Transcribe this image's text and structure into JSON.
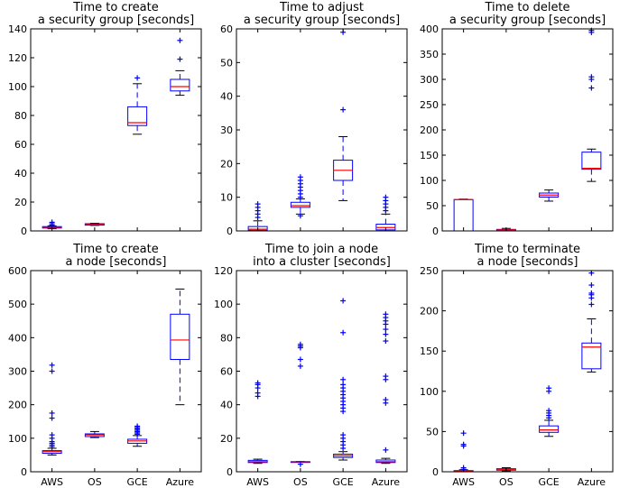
{
  "chart_data": [
    {
      "type": "box",
      "title": [
        "Time to create",
        "a security group [seconds]"
      ],
      "categories": [
        "AWS",
        "OS",
        "GCE",
        "Azure"
      ],
      "ylim": [
        0,
        140
      ],
      "yticks": [
        0,
        20,
        40,
        60,
        80,
        100,
        120,
        140
      ],
      "show_xticklabels": false,
      "boxes": [
        {
          "whislo": 1.5,
          "q1": 2,
          "med": 2.5,
          "q3": 3,
          "whishi": 3.5,
          "fliers": [
            4,
            5,
            6
          ]
        },
        {
          "whislo": 3.8,
          "q1": 4,
          "med": 4.5,
          "q3": 5,
          "whishi": 5.3,
          "fliers": []
        },
        {
          "whislo": 67,
          "q1": 73,
          "med": 75,
          "q3": 86,
          "whishi": 102,
          "fliers": [
            106
          ]
        },
        {
          "whislo": 94,
          "q1": 97,
          "med": 100,
          "q3": 105,
          "whishi": 111,
          "fliers": [
            119,
            132
          ]
        }
      ]
    },
    {
      "type": "box",
      "title": [
        "Time to adjust",
        "a security group [seconds]"
      ],
      "categories": [
        "AWS",
        "OS",
        "GCE",
        "Azure"
      ],
      "ylim": [
        0,
        60
      ],
      "yticks": [
        0,
        10,
        20,
        30,
        40,
        50,
        60
      ],
      "show_xticklabels": false,
      "boxes": [
        {
          "whislo": 0,
          "q1": 0.2,
          "med": 0.5,
          "q3": 1.3,
          "whishi": 3,
          "fliers": [
            4,
            5,
            6,
            7,
            8
          ]
        },
        {
          "whislo": 5,
          "q1": 7,
          "med": 7.5,
          "q3": 8.5,
          "whishi": 9.5,
          "fliers": [
            4.5,
            10,
            11,
            12,
            13,
            14,
            15,
            16
          ]
        },
        {
          "whislo": 9,
          "q1": 15,
          "med": 18,
          "q3": 21,
          "whishi": 28,
          "fliers": [
            36,
            59
          ]
        },
        {
          "whislo": 0,
          "q1": 0.3,
          "med": 1,
          "q3": 2,
          "whishi": 5,
          "fliers": [
            6,
            7,
            8,
            9,
            10
          ]
        }
      ]
    },
    {
      "type": "box",
      "title": [
        "Time to delete",
        "a security group [seconds]"
      ],
      "categories": [
        "AWS",
        "OS",
        "GCE",
        "Azure"
      ],
      "ylim": [
        0,
        400
      ],
      "yticks": [
        0,
        50,
        100,
        150,
        200,
        250,
        300,
        350,
        400
      ],
      "show_xticklabels": false,
      "boxes": [
        {
          "whislo": 0,
          "q1": 0,
          "med": 62,
          "q3": 62,
          "whishi": 63,
          "fliers": []
        },
        {
          "whislo": 0,
          "q1": 1,
          "med": 2,
          "q3": 3,
          "whishi": 5,
          "fliers": []
        },
        {
          "whislo": 59,
          "q1": 67,
          "med": 71,
          "q3": 75,
          "whishi": 81,
          "fliers": []
        },
        {
          "whislo": 98,
          "q1": 122,
          "med": 124,
          "q3": 156,
          "whishi": 162,
          "fliers": [
            283,
            300,
            305,
            393,
            397
          ]
        }
      ]
    },
    {
      "type": "box",
      "title": [
        "Time to create",
        "a node [seconds]"
      ],
      "categories": [
        "AWS",
        "OS",
        "GCE",
        "Azure"
      ],
      "ylim": [
        0,
        600
      ],
      "yticks": [
        0,
        100,
        200,
        300,
        400,
        500,
        600
      ],
      "show_xticklabels": true,
      "boxes": [
        {
          "whislo": 50,
          "q1": 55,
          "med": 60,
          "q3": 63,
          "whishi": 70,
          "fliers": [
            75,
            80,
            85,
            90,
            100,
            110,
            160,
            175,
            300,
            318
          ]
        },
        {
          "whislo": 102,
          "q1": 105,
          "med": 110,
          "q3": 113,
          "whishi": 120,
          "fliers": []
        },
        {
          "whislo": 76,
          "q1": 85,
          "med": 92,
          "q3": 97,
          "whishi": 108,
          "fliers": [
            112,
            116,
            120,
            124,
            128,
            132,
            136
          ]
        },
        {
          "whislo": 200,
          "q1": 335,
          "med": 393,
          "q3": 470,
          "whishi": 545,
          "fliers": []
        }
      ]
    },
    {
      "type": "box",
      "title": [
        "Time to join a node",
        "into a cluster [seconds]"
      ],
      "categories": [
        "AWS",
        "OS",
        "GCE",
        "Azure"
      ],
      "ylim": [
        0,
        120
      ],
      "yticks": [
        0,
        20,
        40,
        60,
        80,
        100,
        120
      ],
      "show_xticklabels": true,
      "boxes": [
        {
          "whislo": 5,
          "q1": 5.5,
          "med": 6,
          "q3": 6.8,
          "whishi": 7.5,
          "fliers": [
            45,
            47,
            50,
            52,
            53
          ]
        },
        {
          "whislo": 5.8,
          "q1": 6,
          "med": 6,
          "q3": 6,
          "whishi": 6.2,
          "fliers": [
            4.5,
            63,
            67,
            74,
            75,
            76
          ]
        },
        {
          "whislo": 7,
          "q1": 8.5,
          "med": 9.5,
          "q3": 10.5,
          "whishi": 12,
          "fliers": [
            14,
            16,
            18,
            20,
            22,
            36,
            38,
            40,
            42,
            44,
            46,
            48,
            50,
            52,
            55,
            83,
            102
          ]
        },
        {
          "whislo": 5,
          "q1": 5.5,
          "med": 6,
          "q3": 7,
          "whishi": 8,
          "fliers": [
            13,
            41,
            43,
            55,
            57,
            78,
            82,
            85,
            88,
            90,
            92,
            94
          ]
        }
      ]
    },
    {
      "type": "box",
      "title": [
        "Time to terminate",
        "a node [seconds]"
      ],
      "categories": [
        "AWS",
        "OS",
        "GCE",
        "Azure"
      ],
      "ylim": [
        0,
        250
      ],
      "yticks": [
        0,
        50,
        100,
        150,
        200,
        250
      ],
      "show_xticklabels": true,
      "boxes": [
        {
          "whislo": 0,
          "q1": 0.5,
          "med": 1,
          "q3": 1.5,
          "whishi": 2.5,
          "fliers": [
            3,
            5,
            32,
            34,
            48
          ]
        },
        {
          "whislo": 1,
          "q1": 2,
          "med": 3,
          "q3": 3.8,
          "whishi": 5,
          "fliers": []
        },
        {
          "whislo": 44,
          "q1": 49,
          "med": 52,
          "q3": 57,
          "whishi": 64,
          "fliers": [
            67,
            70,
            73,
            76,
            100,
            104
          ]
        },
        {
          "whislo": 124,
          "q1": 128,
          "med": 155,
          "q3": 160,
          "whishi": 190,
          "fliers": [
            208,
            216,
            220,
            222,
            232,
            247
          ]
        }
      ]
    }
  ]
}
